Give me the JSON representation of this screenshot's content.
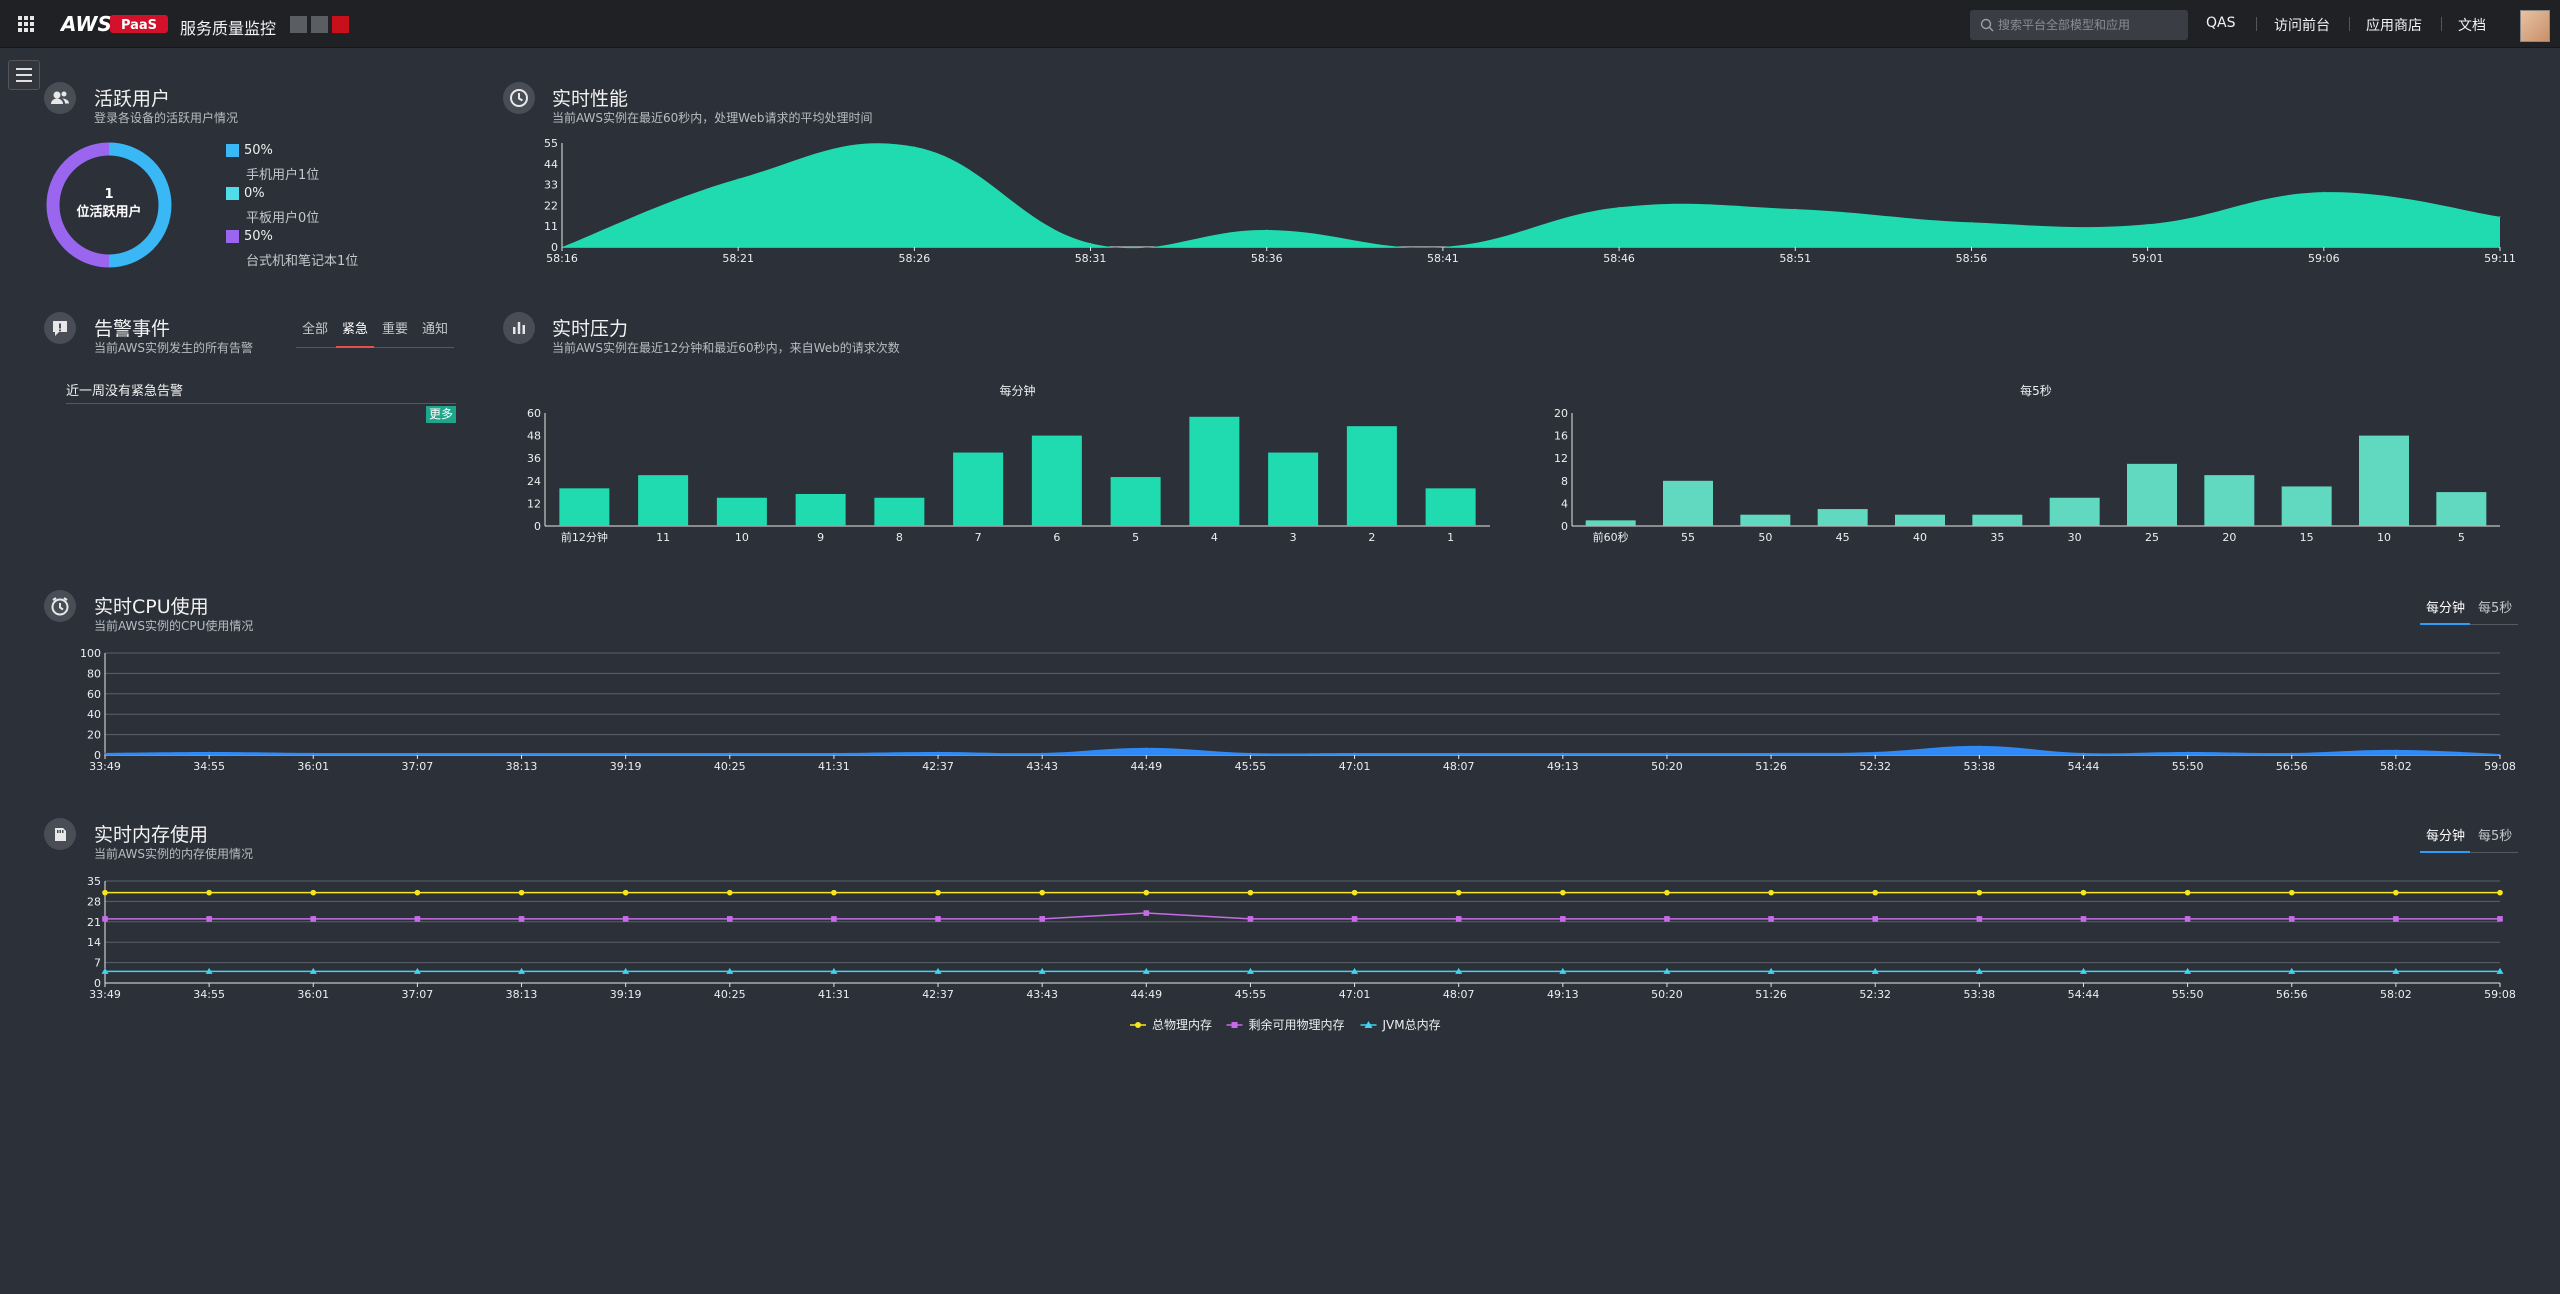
{
  "topbar": {
    "logo_text": "AWS",
    "logo_badge": "PaaS",
    "app_title": "服务质量监控",
    "search_placeholder": "搜索平台全部模型和应用",
    "nav": [
      "QAS",
      "访问前台",
      "应用商店",
      "文档"
    ],
    "color_squares": [
      "#5a5d62",
      "#5a5d62",
      "#c8101c"
    ]
  },
  "active_users": {
    "title": "活跃用户",
    "subtitle": "登录各设备的活跃用户情况",
    "center_number": "1",
    "center_label": "位活跃用户",
    "legend": [
      {
        "pct": "50%",
        "label": "手机用户1位",
        "color": "#3ab7f5",
        "value": 50
      },
      {
        "pct": "0%",
        "label": "平板用户0位",
        "color": "#4fdde8",
        "value": 0
      },
      {
        "pct": "50%",
        "label": "台式机和笔记本1位",
        "color": "#9a66f0",
        "value": 50
      }
    ]
  },
  "alerts": {
    "title": "告警事件",
    "subtitle": "当前AWS实例发生的所有告警",
    "tabs": [
      "全部",
      "紧急",
      "重要",
      "通知"
    ],
    "active_tab": 1,
    "message": "近一周没有紧急告警",
    "more_label": "更多"
  },
  "performance": {
    "title": "实时性能",
    "subtitle": "当前AWS实例在最近60秒内，处理Web请求的平均处理时间"
  },
  "pressure": {
    "title": "实时压力",
    "subtitle": "当前AWS实例在最近12分钟和最近60秒内，来自Web的请求次数"
  },
  "cpu": {
    "title": "实时CPU使用",
    "subtitle": "当前AWS实例的CPU使用情况",
    "tabs": [
      "每分钟",
      "每5秒"
    ]
  },
  "memory": {
    "title": "实时内存使用",
    "subtitle": "当前AWS实例的内存使用情况",
    "tabs": [
      "每分钟",
      "每5秒"
    ]
  },
  "chart_data": [
    {
      "id": "performance",
      "type": "area",
      "x": [
        "58:16",
        "58:21",
        "58:26",
        "58:31",
        "58:36",
        "58:41",
        "58:46",
        "58:51",
        "58:56",
        "59:01",
        "59:06",
        "59:11"
      ],
      "values": [
        0,
        36,
        53,
        2,
        9,
        0,
        21,
        20,
        13,
        12,
        29,
        16
      ],
      "yticks": [
        0,
        11,
        22,
        33,
        44,
        55
      ],
      "ylim": [
        0,
        55
      ],
      "color": "#21dbb0"
    },
    {
      "id": "pressure_minute",
      "type": "bar",
      "title": "每分钟",
      "categories": [
        "前12分钟",
        "11",
        "10",
        "9",
        "8",
        "7",
        "6",
        "5",
        "4",
        "3",
        "2",
        "1"
      ],
      "values": [
        20,
        27,
        15,
        17,
        15,
        39,
        48,
        26,
        58,
        39,
        53,
        20
      ],
      "yticks": [
        0,
        12,
        24,
        36,
        48,
        60
      ],
      "ylim": [
        0,
        60
      ],
      "color": "#21dbb0"
    },
    {
      "id": "pressure_5s",
      "type": "bar",
      "title": "每5秒",
      "categories": [
        "前60秒",
        "55",
        "50",
        "45",
        "40",
        "35",
        "30",
        "25",
        "20",
        "15",
        "10",
        "5"
      ],
      "values": [
        1,
        8,
        2,
        3,
        2,
        2,
        5,
        11,
        9,
        7,
        16,
        6
      ],
      "yticks": [
        0,
        4,
        8,
        12,
        16,
        20
      ],
      "ylim": [
        0,
        20
      ],
      "color": "#60d9c0"
    },
    {
      "id": "cpu",
      "type": "area",
      "x": [
        "33:49",
        "34:55",
        "36:01",
        "37:07",
        "38:13",
        "39:19",
        "40:25",
        "41:31",
        "42:37",
        "43:43",
        "44:49",
        "45:55",
        "47:01",
        "48:07",
        "49:13",
        "50:20",
        "51:26",
        "52:32",
        "53:38",
        "54:44",
        "55:50",
        "56:56",
        "58:02",
        "59:08"
      ],
      "values": [
        2,
        3,
        2,
        2,
        2,
        2,
        2,
        2,
        3,
        2,
        7,
        2,
        2,
        2,
        2,
        2,
        2,
        3,
        9,
        2,
        3,
        2,
        5,
        1
      ],
      "yticks": [
        0,
        20,
        40,
        60,
        80,
        100
      ],
      "ylim": [
        0,
        100
      ],
      "color": "#2f8af5"
    },
    {
      "id": "memory",
      "type": "line",
      "x": [
        "33:49",
        "34:55",
        "36:01",
        "37:07",
        "38:13",
        "39:19",
        "40:25",
        "41:31",
        "42:37",
        "43:43",
        "44:49",
        "45:55",
        "47:01",
        "48:07",
        "49:13",
        "50:20",
        "51:26",
        "52:32",
        "53:38",
        "54:44",
        "55:50",
        "56:56",
        "58:02",
        "59:08"
      ],
      "yticks": [
        0,
        7,
        14,
        21,
        28,
        35
      ],
      "ylim": [
        0,
        35
      ],
      "series": [
        {
          "name": "总物理内存",
          "color": "#f5e81a",
          "marker": "circle",
          "values": [
            31,
            31,
            31,
            31,
            31,
            31,
            31,
            31,
            31,
            31,
            31,
            31,
            31,
            31,
            31,
            31,
            31,
            31,
            31,
            31,
            31,
            31,
            31,
            31
          ]
        },
        {
          "name": "剩余可用物理内存",
          "color": "#c76be8",
          "marker": "square",
          "values": [
            22,
            22,
            22,
            22,
            22,
            22,
            22,
            22,
            22,
            22,
            24,
            22,
            22,
            22,
            22,
            22,
            22,
            22,
            22,
            22,
            22,
            22,
            22,
            22
          ]
        },
        {
          "name": "JVM总内存",
          "color": "#3fd5f0",
          "marker": "triangle",
          "values": [
            4,
            4,
            4,
            4,
            4,
            4,
            4,
            4,
            4,
            4,
            4,
            4,
            4,
            4,
            4,
            4,
            4,
            4,
            4,
            4,
            4,
            4,
            4,
            4
          ]
        }
      ]
    }
  ]
}
